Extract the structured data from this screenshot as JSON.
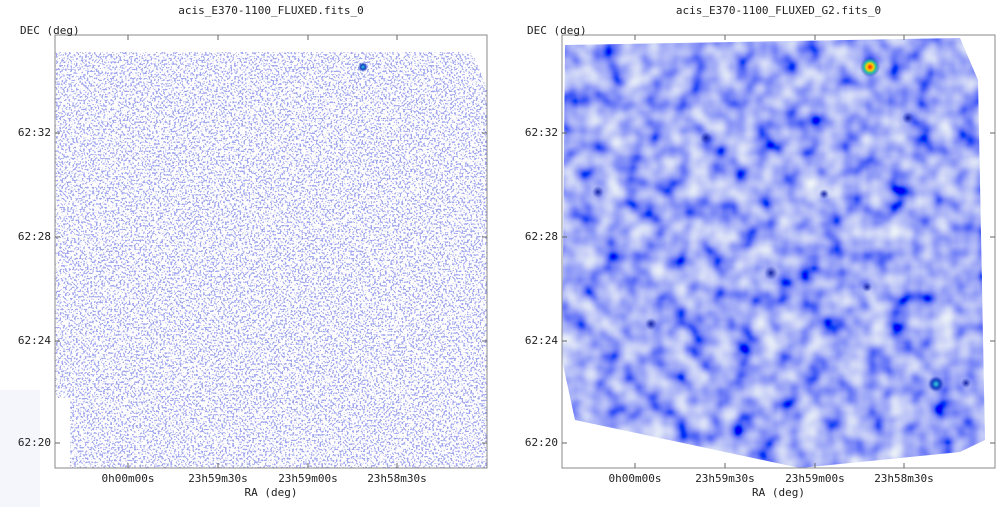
{
  "panels": [
    {
      "title": "acis_E370-1100_FLUXED.fits_0",
      "y_axis_label": "DEC (deg)",
      "x_axis_label": "RA (deg)",
      "y_ticks": [
        "62:32",
        "62:28",
        "62:24",
        "62:20"
      ],
      "x_ticks": [
        "0h00m00s",
        "23h59m30s",
        "23h59m00s",
        "23h58m30s"
      ]
    },
    {
      "title": "acis_E370-1100_FLUXED_G2.fits_0",
      "y_axis_label": "DEC (deg)",
      "x_axis_label": "RA (deg)",
      "y_ticks": [
        "62:32",
        "62:28",
        "62:24",
        "62:20"
      ],
      "x_ticks": [
        "0h00m00s",
        "23h59m30s",
        "23h59m00s",
        "23h58m30s"
      ]
    }
  ]
}
